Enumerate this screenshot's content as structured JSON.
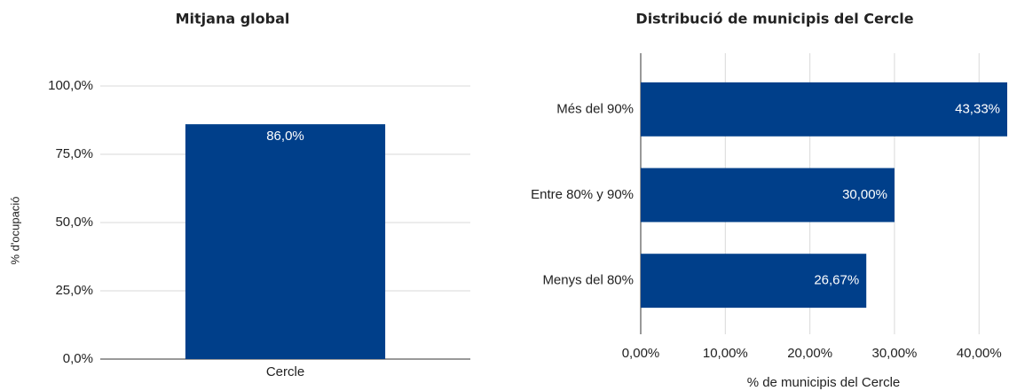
{
  "chart_data": [
    {
      "type": "bar",
      "orientation": "vertical",
      "title": "Mitjana global",
      "y_label": "% d'ocupació",
      "categories": [
        "Cercle"
      ],
      "values": [
        86.0
      ],
      "value_labels": [
        "86,0%"
      ],
      "color": "#003f8a",
      "ylim": [
        0,
        100
      ],
      "yticks": [
        {
          "value": 0,
          "label": "0,0%"
        },
        {
          "value": 25,
          "label": "25,0%"
        },
        {
          "value": 50,
          "label": "50,0%"
        },
        {
          "value": 75,
          "label": "75,0%"
        },
        {
          "value": 100,
          "label": "100,0%"
        }
      ],
      "grid": true
    },
    {
      "type": "bar",
      "orientation": "horizontal",
      "title": "Distribució de municipis del Cercle",
      "x_label": "% de municipis del Cercle",
      "categories": [
        "Més del 90%",
        "Entre 80% y 90%",
        "Menys del 80%"
      ],
      "values": [
        43.33,
        30.0,
        26.67
      ],
      "value_labels": [
        "43,33%",
        "30,00%",
        "26,67%"
      ],
      "color": "#003f8a",
      "xlim": [
        0,
        43.33
      ],
      "xticks": [
        {
          "value": 0,
          "label": "0,00%"
        },
        {
          "value": 10,
          "label": "10,00%"
        },
        {
          "value": 20,
          "label": "20,00%"
        },
        {
          "value": 30,
          "label": "30,00%"
        },
        {
          "value": 40,
          "label": "40,00%"
        }
      ],
      "grid": true
    }
  ]
}
